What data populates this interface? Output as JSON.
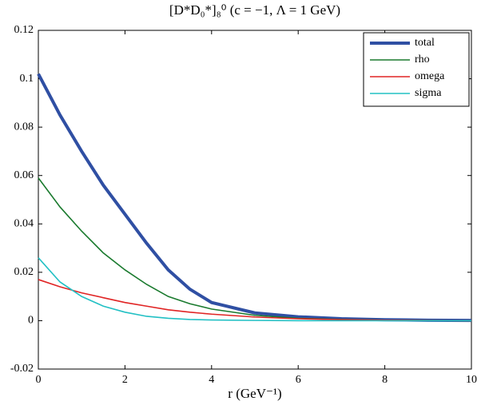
{
  "chart_data": {
    "type": "line",
    "title": "[D*D₀*]₈⁰ (c = −1, Λ = 1 GeV)",
    "x_label": "r (GeV⁻¹)",
    "x": [
      0,
      0.5,
      1,
      1.5,
      2,
      2.5,
      3,
      3.5,
      4,
      5,
      6,
      7,
      8,
      9,
      10
    ],
    "series": [
      {
        "name": "total",
        "color": "#2f4fa3",
        "values": [
          0.102,
          0.085,
          0.07,
          0.056,
          0.044,
          0.032,
          0.021,
          0.013,
          0.0075,
          0.0032,
          0.0016,
          0.0008,
          0.0004,
          0.0002,
          0.0001
        ]
      },
      {
        "name": "rho",
        "color": "#1a7a2e",
        "values": [
          0.059,
          0.047,
          0.037,
          0.028,
          0.021,
          0.015,
          0.01,
          0.007,
          0.0048,
          0.0022,
          0.001,
          0.0005,
          0.0002,
          0.0001,
          0
        ]
      },
      {
        "name": "omega",
        "color": "#e02424",
        "values": [
          0.017,
          0.014,
          0.0115,
          0.0095,
          0.0075,
          0.006,
          0.0045,
          0.0035,
          0.0027,
          0.0015,
          0.0008,
          0.0004,
          0.0002,
          0.0001,
          0
        ]
      },
      {
        "name": "sigma",
        "color": "#22c0c4",
        "values": [
          0.026,
          0.016,
          0.01,
          0.006,
          0.0035,
          0.0018,
          0.001,
          0.0005,
          0.0003,
          0.0001,
          0,
          0,
          0,
          0,
          0
        ]
      }
    ],
    "xlim": [
      0,
      10
    ],
    "xticks": [
      0,
      2,
      4,
      6,
      8,
      10
    ],
    "ylim": [
      -0.02,
      0.12
    ],
    "yticks": [
      -0.02,
      0,
      0.02,
      0.04,
      0.06,
      0.08,
      0.1,
      0.12
    ],
    "legend": "upper right"
  }
}
